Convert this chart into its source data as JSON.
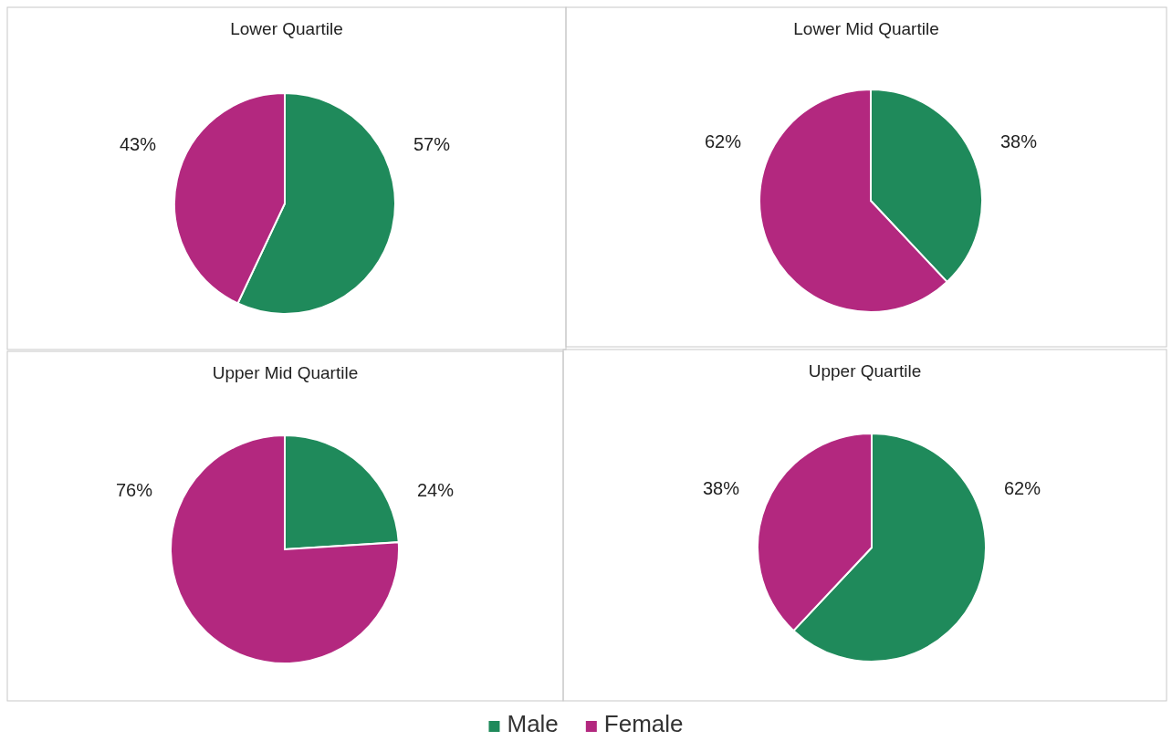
{
  "chart_data": [
    {
      "type": "pie",
      "title": "Lower Quartile",
      "categories": [
        null,
        null
      ],
      "values": [
        57,
        43
      ],
      "colors": [
        "#1f8a5b",
        "#b3287f"
      ],
      "value_labels": [
        "57%",
        "43%"
      ]
    },
    {
      "type": "pie",
      "title": "Lower Mid Quartile",
      "categories": [
        null,
        null
      ],
      "values": [
        38,
        62
      ],
      "colors": [
        "#1f8a5b",
        "#b3287f"
      ],
      "value_labels": [
        "38%",
        "62%"
      ]
    },
    {
      "type": "pie",
      "title": "Upper Mid Quartile",
      "categories": [
        null,
        null
      ],
      "values": [
        24,
        76
      ],
      "colors": [
        "#1f8a5b",
        "#b3287f"
      ],
      "value_labels": [
        "24%",
        "76%"
      ]
    },
    {
      "type": "pie",
      "title": "Upper Quartile",
      "categories": [
        "Male",
        "Female"
      ],
      "values": [
        62,
        38
      ],
      "colors": [
        "#1f8a5b",
        "#b3287f"
      ],
      "value_labels": [
        "62%",
        "38%"
      ],
      "legend": "bottom"
    }
  ]
}
